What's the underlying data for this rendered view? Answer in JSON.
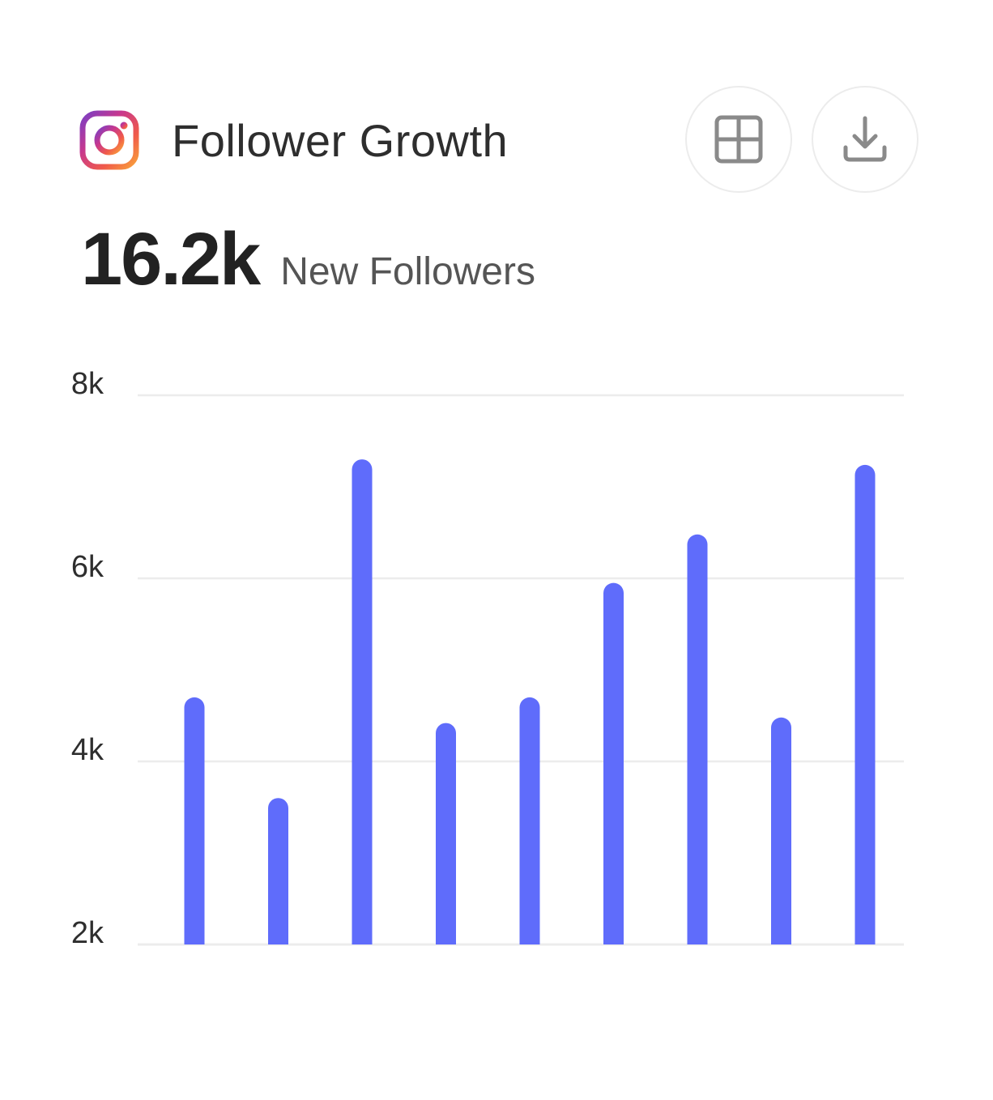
{
  "card": {
    "title": "Follower Growth",
    "brand_icon": "instagram-icon",
    "summary_value": "16.2k",
    "summary_label": "New Followers",
    "actions": [
      {
        "name": "grid-view-button",
        "icon": "grid-icon"
      },
      {
        "name": "download-button",
        "icon": "download-icon"
      }
    ]
  },
  "chart_data": {
    "type": "bar",
    "title": "",
    "xlabel": "",
    "ylabel": "",
    "ylim": [
      2000,
      8000
    ],
    "y_ticks": [
      {
        "value": 8000,
        "label": "8k"
      },
      {
        "value": 6000,
        "label": "6k"
      },
      {
        "value": 4000,
        "label": "4k"
      },
      {
        "value": 2000,
        "label": "2k"
      }
    ],
    "grid": true,
    "values": [
      4700,
      3600,
      7300,
      4420,
      4700,
      5950,
      6480,
      4480,
      7240
    ],
    "bar_color": "#5f6cfb",
    "grid_color": "#ececec"
  }
}
